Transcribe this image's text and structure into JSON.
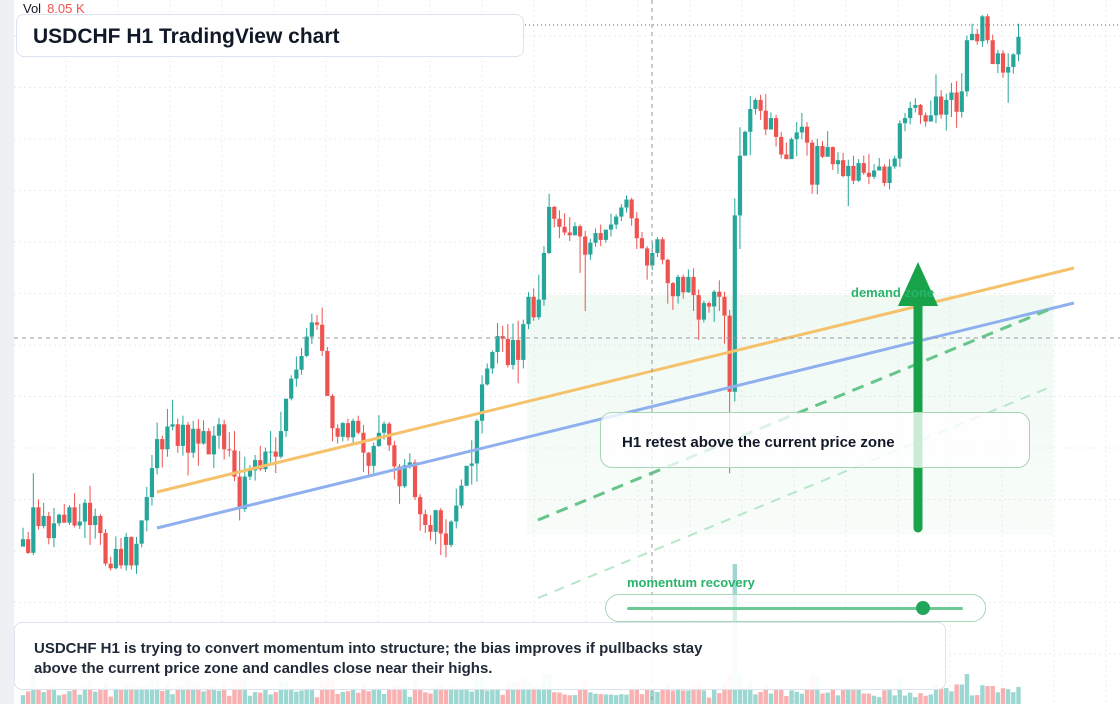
{
  "header": {
    "title": "USDCHF H1 TradingView chart",
    "volume_label": "Vol",
    "volume_value": "8.05 K"
  },
  "annotations": {
    "callout_text": "H1 retest above the current price zone",
    "zone_label": "demand zone",
    "momentum_label": "momentum recovery",
    "momentum_level": 0.88,
    "summary_text": "USDCHF H1 is trying to convert momentum into structure; the bias improves if pullbacks stay above the current price zone and candles close near their highs."
  },
  "colors": {
    "up": "#26a69a",
    "down": "#ef5350",
    "accent_green": "#21a55a",
    "trend_orange": "#f5c26b",
    "trend_blue": "#8fb0ee",
    "volume_value": "#ef5350"
  },
  "icons": [
    "arrow-up-icon"
  ],
  "chart_data": {
    "type": "candlestick",
    "symbol": "USDCHF",
    "timeframe": "H1",
    "x": "bar index",
    "ylim": [
      0,
      100
    ],
    "grid": true,
    "candles": [
      [
        12.9,
        14.2,
        16.2,
        13.5
      ],
      [
        14.2,
        11.8,
        15.5,
        11.6
      ],
      [
        11.8,
        19.8,
        25.8,
        11.4
      ],
      [
        19.8,
        16.5,
        21.2,
        15.9
      ],
      [
        16.5,
        18.3,
        20.6,
        16.1
      ],
      [
        18.3,
        14.4,
        19.0,
        13.3
      ],
      [
        14.4,
        17.0,
        19.7,
        12.8
      ],
      [
        17.0,
        18.5,
        18.7,
        16.5
      ],
      [
        18.5,
        17.1,
        20.4,
        17.1
      ],
      [
        17.1,
        19.8,
        20.2,
        16.7
      ],
      [
        19.8,
        16.6,
        22.3,
        16.3
      ],
      [
        16.6,
        17.3,
        20.4,
        16.0
      ],
      [
        17.3,
        20.6,
        21.2,
        14.4
      ],
      [
        20.6,
        16.7,
        23.6,
        13.2
      ],
      [
        16.7,
        18.3,
        19.6,
        14.3
      ],
      [
        18.3,
        15.3,
        18.6,
        13.2
      ],
      [
        15.3,
        9.9,
        16.0,
        9.5
      ],
      [
        9.9,
        9.1,
        11.1,
        8.7
      ],
      [
        9.1,
        12.5,
        14.7,
        8.9
      ],
      [
        12.5,
        9.6,
        14.4,
        9.0
      ],
      [
        9.6,
        14.6,
        15.3,
        8.7
      ],
      [
        14.6,
        9.6,
        14.7,
        8.9
      ],
      [
        9.6,
        13.4,
        14.6,
        8.1
      ],
      [
        13.4,
        17.5,
        17.5,
        12.8
      ],
      [
        17.5,
        21.6,
        23.4,
        15.6
      ],
      [
        21.6,
        26.7,
        29.0,
        20.1
      ],
      [
        26.7,
        31.8,
        34.7,
        25.6
      ],
      [
        31.8,
        30.0,
        32.4,
        26.8
      ],
      [
        30.0,
        34.0,
        37.1,
        28.7
      ],
      [
        34.0,
        34.4,
        38.7,
        33.3
      ],
      [
        34.4,
        30.6,
        35.4,
        29.4
      ],
      [
        30.6,
        34.3,
        35.9,
        28.9
      ],
      [
        34.3,
        29.4,
        34.8,
        25.4
      ],
      [
        29.4,
        33.6,
        35.0,
        28.5
      ],
      [
        33.6,
        31.0,
        35.3,
        27.1
      ],
      [
        31.0,
        33.2,
        35.1,
        30.8
      ],
      [
        33.2,
        29.1,
        33.7,
        29.1
      ],
      [
        29.1,
        32.4,
        34.1,
        26.7
      ],
      [
        32.4,
        34.4,
        35.5,
        30.1
      ],
      [
        34.4,
        30.0,
        35.2,
        28.2
      ],
      [
        30.0,
        29.8,
        33.0,
        28.7
      ],
      [
        29.8,
        25.2,
        33.2,
        24.4
      ],
      [
        25.2,
        19.5,
        29.7,
        17.5
      ],
      [
        19.5,
        25.2,
        28.7,
        19.0
      ],
      [
        25.2,
        26.3,
        27.2,
        24.6
      ],
      [
        26.3,
        28.1,
        29.0,
        24.5
      ],
      [
        28.1,
        26.5,
        30.6,
        26.2
      ],
      [
        26.5,
        29.6,
        30.3,
        26.0
      ],
      [
        29.6,
        29.6,
        33.2,
        27.3
      ],
      [
        29.6,
        28.7,
        32.1,
        25.8
      ],
      [
        28.7,
        33.2,
        36.6,
        28.4
      ],
      [
        33.2,
        38.9,
        38.9,
        32.2
      ],
      [
        38.9,
        42.4,
        43.0,
        38.6
      ],
      [
        42.4,
        44.0,
        46.3,
        41.0
      ],
      [
        44.0,
        46.4,
        47.8,
        43.1
      ],
      [
        46.4,
        49.8,
        51.3,
        46.2
      ],
      [
        49.8,
        52.3,
        53.8,
        48.5
      ],
      [
        52.3,
        51.9,
        53.6,
        51.0
      ],
      [
        51.9,
        47.3,
        54.9,
        46.4
      ],
      [
        47.3,
        39.4,
        48.0,
        39.4
      ],
      [
        39.4,
        33.7,
        39.7,
        31.4
      ],
      [
        33.7,
        32.2,
        34.4,
        31.0
      ],
      [
        32.2,
        34.6,
        34.8,
        31.4
      ],
      [
        34.6,
        32.1,
        35.4,
        31.5
      ],
      [
        32.1,
        35.0,
        35.4,
        30.8
      ],
      [
        35.0,
        32.9,
        35.9,
        32.6
      ],
      [
        32.9,
        29.4,
        34.3,
        26.0
      ],
      [
        29.4,
        27.1,
        29.5,
        25.1
      ],
      [
        27.1,
        30.6,
        31.2,
        25.8
      ],
      [
        30.6,
        32.9,
        36.0,
        30.4
      ],
      [
        32.9,
        34.5,
        34.9,
        31.7
      ],
      [
        34.5,
        30.7,
        34.8,
        29.7
      ],
      [
        30.7,
        27.0,
        31.5,
        24.7
      ],
      [
        27.0,
        23.5,
        27.4,
        20.4
      ],
      [
        23.5,
        27.2,
        28.3,
        23.2
      ],
      [
        27.2,
        27.7,
        29.3,
        26.6
      ],
      [
        27.7,
        21.6,
        28.2,
        21.1
      ],
      [
        21.6,
        18.6,
        22.1,
        15.7
      ],
      [
        18.6,
        16.7,
        19.4,
        15.3
      ],
      [
        16.7,
        15.5,
        18.4,
        14.0
      ],
      [
        15.5,
        19.3,
        19.4,
        13.3
      ],
      [
        19.3,
        15.2,
        19.7,
        11.4
      ],
      [
        15.2,
        13.2,
        17.7,
        11.0
      ],
      [
        13.2,
        17.3,
        17.5,
        12.8
      ],
      [
        17.3,
        20.1,
        23.1,
        16.1
      ],
      [
        20.1,
        23.6,
        24.7,
        19.6
      ],
      [
        23.6,
        27.1,
        27.1,
        23.5
      ],
      [
        27.1,
        27.5,
        31.6,
        23.8
      ],
      [
        27.5,
        35.0,
        35.3,
        24.3
      ],
      [
        35.0,
        41.4,
        43.0,
        32.8
      ],
      [
        41.4,
        44.2,
        45.1,
        41.2
      ],
      [
        44.2,
        47.1,
        47.4,
        43.3
      ],
      [
        47.1,
        49.9,
        52.2,
        45.1
      ],
      [
        49.9,
        49.4,
        51.7,
        47.1
      ],
      [
        49.4,
        44.8,
        52.0,
        44.4
      ],
      [
        44.8,
        49.2,
        52.1,
        44.0
      ],
      [
        49.2,
        45.7,
        52.6,
        41.6
      ],
      [
        45.7,
        52.0,
        52.8,
        44.2
      ],
      [
        52.0,
        56.8,
        57.6,
        51.1
      ],
      [
        56.8,
        53.2,
        58.3,
        52.6
      ],
      [
        53.2,
        56.3,
        60.7,
        52.8
      ],
      [
        56.3,
        64.5,
        65.7,
        55.2
      ],
      [
        64.5,
        72.6,
        74.9,
        64.3
      ],
      [
        72.6,
        70.5,
        72.8,
        69.0
      ],
      [
        70.5,
        69.1,
        72.0,
        67.1
      ],
      [
        69.1,
        68.1,
        71.5,
        67.6
      ],
      [
        68.1,
        67.6,
        70.8,
        66.6
      ],
      [
        67.6,
        69.2,
        69.9,
        67.7
      ],
      [
        69.2,
        67.4,
        69.5,
        61.0
      ],
      [
        67.4,
        64.2,
        68.4,
        54.3
      ],
      [
        64.2,
        66.3,
        67.0,
        63.3
      ],
      [
        66.3,
        68.0,
        68.8,
        65.6
      ],
      [
        68.0,
        66.8,
        69.5,
        65.7
      ],
      [
        66.8,
        68.6,
        68.6,
        66.3
      ],
      [
        68.6,
        69.5,
        71.4,
        67.4
      ],
      [
        69.5,
        70.9,
        71.3,
        68.7
      ],
      [
        70.9,
        72.5,
        73.1,
        70.1
      ],
      [
        72.5,
        73.9,
        74.6,
        71.6
      ],
      [
        73.9,
        70.6,
        74.2,
        69.3
      ],
      [
        70.6,
        67.1,
        71.7,
        65.2
      ],
      [
        67.1,
        65.3,
        68.2,
        65.6
      ],
      [
        65.3,
        62.3,
        65.7,
        59.8
      ],
      [
        62.3,
        64.5,
        66.5,
        61.5
      ],
      [
        64.5,
        66.9,
        67.3,
        63.8
      ],
      [
        66.9,
        63.3,
        67.3,
        62.5
      ],
      [
        63.3,
        59.2,
        63.5,
        55.6
      ],
      [
        59.2,
        56.9,
        59.4,
        54.5
      ],
      [
        56.9,
        60.3,
        60.7,
        55.6
      ],
      [
        60.3,
        57.6,
        60.7,
        56.5
      ],
      [
        57.6,
        60.3,
        61.6,
        57.5
      ],
      [
        60.3,
        57.1,
        61.8,
        54.3
      ],
      [
        57.1,
        52.8,
        58.1,
        49.2
      ],
      [
        52.8,
        55.7,
        56.1,
        52.3
      ],
      [
        55.7,
        55.1,
        56.0,
        54.0
      ],
      [
        55.1,
        57.7,
        58.0,
        52.4
      ],
      [
        57.7,
        56.8,
        59.7,
        54.3
      ],
      [
        56.8,
        53.5,
        57.7,
        48.6
      ],
      [
        53.5,
        40.1,
        54.5,
        25.8
      ],
      [
        40.1,
        71.1,
        74.1,
        38.4
      ],
      [
        71.1,
        81.6,
        86.6,
        65.2
      ],
      [
        81.6,
        85.8,
        86.0,
        81.8
      ],
      [
        85.8,
        89.8,
        92.1,
        81.7
      ],
      [
        89.8,
        91.4,
        91.7,
        88.8
      ],
      [
        91.4,
        89.5,
        92.3,
        87.9
      ],
      [
        89.5,
        86.2,
        92.4,
        85.2
      ],
      [
        86.2,
        88.2,
        89.2,
        86.4
      ],
      [
        88.2,
        84.9,
        88.8,
        83.2
      ],
      [
        84.9,
        81.8,
        85.8,
        81.1
      ],
      [
        81.8,
        81.0,
        83.9,
        81.0
      ],
      [
        81.0,
        84.5,
        84.8,
        82.2
      ],
      [
        84.5,
        85.7,
        87.5,
        81.5
      ],
      [
        85.7,
        86.7,
        89.1,
        84.5
      ],
      [
        86.7,
        83.9,
        87.5,
        81.6
      ],
      [
        83.9,
        76.5,
        84.4,
        74.9
      ],
      [
        76.5,
        83.3,
        84.6,
        74.8
      ],
      [
        83.3,
        81.4,
        84.2,
        81.2
      ],
      [
        81.4,
        83.1,
        85.9,
        81.7
      ],
      [
        83.1,
        80.1,
        83.2,
        79.1
      ],
      [
        80.1,
        80.8,
        82.2,
        78.4
      ],
      [
        80.8,
        78.0,
        82.1,
        77.8
      ],
      [
        78.0,
        79.8,
        80.9,
        72.7
      ],
      [
        79.8,
        77.2,
        81.6,
        76.6
      ],
      [
        77.2,
        80.3,
        81.0,
        77.0
      ],
      [
        80.3,
        78.6,
        81.6,
        78.2
      ],
      [
        78.6,
        77.9,
        81.9,
        76.6
      ],
      [
        77.9,
        79.0,
        80.1,
        77.5
      ],
      [
        79.0,
        79.7,
        81.2,
        79.1
      ],
      [
        79.7,
        76.8,
        80.1,
        76.2
      ],
      [
        76.8,
        79.7,
        81.0,
        75.7
      ],
      [
        79.7,
        81.1,
        81.6,
        79.3
      ],
      [
        81.1,
        87.3,
        87.8,
        79.6
      ],
      [
        87.3,
        88.2,
        89.1,
        85.9
      ],
      [
        88.2,
        90.0,
        91.1,
        87.1
      ],
      [
        90.0,
        90.5,
        91.7,
        89.2
      ],
      [
        90.5,
        88.7,
        90.7,
        87.2
      ],
      [
        88.7,
        87.6,
        89.2,
        86.7
      ],
      [
        87.6,
        88.7,
        91.3,
        87.6
      ],
      [
        88.7,
        92.0,
        95.9,
        87.3
      ],
      [
        92.0,
        88.8,
        93.1,
        88.1
      ],
      [
        88.8,
        91.4,
        92.5,
        86.0
      ],
      [
        91.4,
        92.7,
        94.4,
        88.4
      ],
      [
        92.7,
        89.3,
        94.7,
        86.5
      ],
      [
        89.3,
        92.9,
        96.1,
        88.3
      ],
      [
        92.9,
        101.9,
        102.7,
        92.0
      ],
      [
        101.9,
        103.0,
        104.8,
        101.9
      ],
      [
        103.0,
        101.7,
        103.9,
        101.1
      ],
      [
        101.7,
        106.1,
        106.3,
        100.7
      ],
      [
        106.1,
        101.9,
        106.5,
        101.3
      ],
      [
        101.9,
        97.7,
        102.9,
        97.7
      ],
      [
        97.7,
        99.6,
        100.2,
        96.1
      ],
      [
        99.6,
        96.2,
        100.1,
        95.3
      ],
      [
        96.2,
        97.2,
        99.6,
        90.9
      ],
      [
        97.2,
        99.4,
        99.6,
        96.0
      ],
      [
        99.4,
        102.5,
        104.8,
        98.2
      ]
    ],
    "trendlines": [
      {
        "name": "upper trendline",
        "points": [
          [
            0,
            1.4
          ],
          [
            15,
            3.0
          ]
        ]
      },
      {
        "name": "lower trendline",
        "points": [
          [
            0,
            0.0
          ],
          [
            15,
            1.7
          ]
        ]
      }
    ]
  }
}
